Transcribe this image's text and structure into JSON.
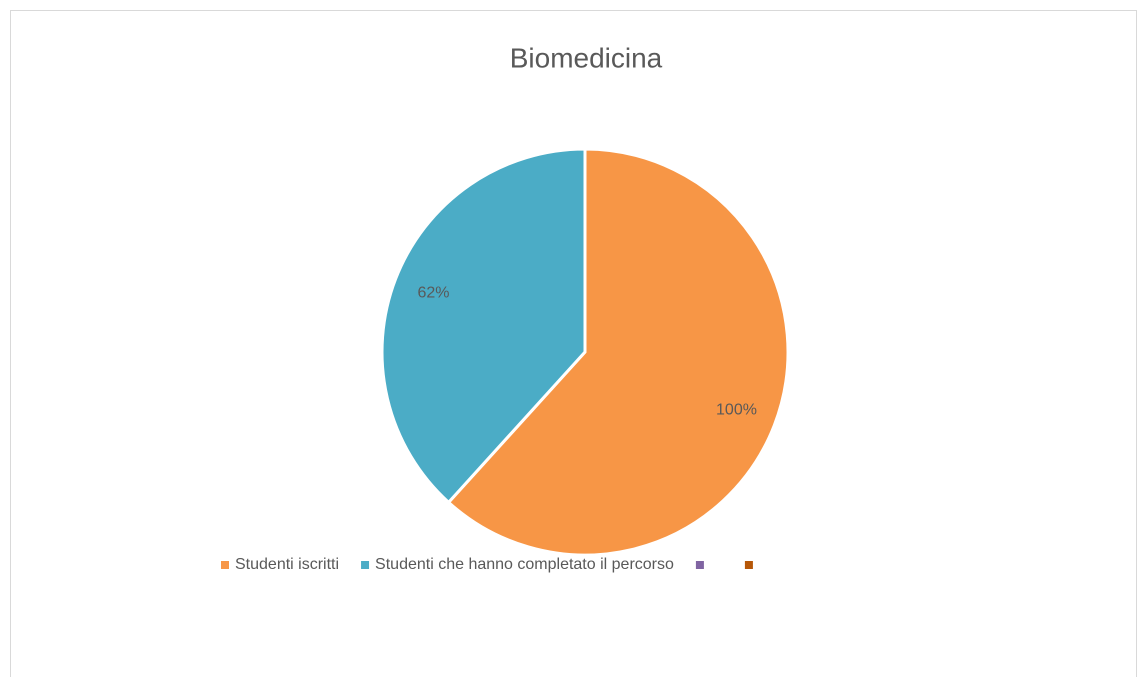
{
  "chart_data": {
    "type": "pie",
    "title": "Biomedicina",
    "categories": [
      "Studenti iscritti",
      "Studenti che hanno completato il percorso",
      null,
      null
    ],
    "values": [
      100,
      62,
      0,
      0
    ],
    "value_labels": [
      "100%",
      "62%",
      null,
      null
    ],
    "colors": [
      "#f79646",
      "#4bacc6",
      "#8064a2",
      "#b65708"
    ],
    "legend": "bottom"
  }
}
